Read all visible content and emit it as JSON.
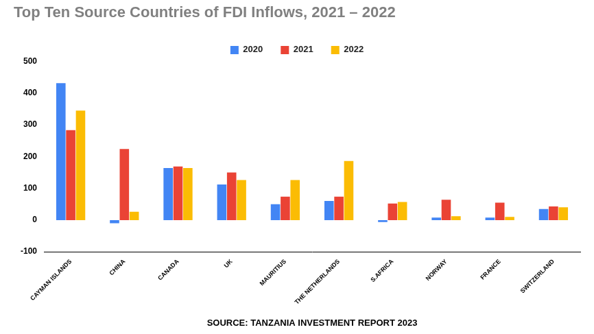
{
  "chart_data": {
    "type": "bar",
    "title": "Top Ten Source Countries of FDI Inflows, 2021 – 2022",
    "xlabel": "SOURCE: TANZANIA INVESTMENT REPORT 2023",
    "categories": [
      "CAYMAN ISLANDS",
      "CHINA",
      "CANADA",
      "UK",
      "MAURITIUS",
      "THE NETHERLANDS",
      "S.AFRICA",
      "NORWAY",
      "FRANCE",
      "SWITZERLAND"
    ],
    "series": [
      {
        "name": "2020",
        "color": "#4285f4",
        "values": [
          431,
          -10,
          164,
          112,
          50,
          60,
          -6,
          8,
          8,
          35
        ]
      },
      {
        "name": "2021",
        "color": "#ea4335",
        "values": [
          283,
          224,
          169,
          150,
          74,
          74,
          52,
          64,
          55,
          43
        ]
      },
      {
        "name": "2022",
        "color": "#fbbc04",
        "values": [
          345,
          26,
          164,
          126,
          126,
          186,
          57,
          12,
          10,
          40
        ]
      }
    ],
    "ylim": [
      -100,
      500
    ],
    "yticks": [
      -100,
      0,
      100,
      200,
      300,
      400,
      500
    ],
    "grid": false,
    "legend": "top"
  }
}
